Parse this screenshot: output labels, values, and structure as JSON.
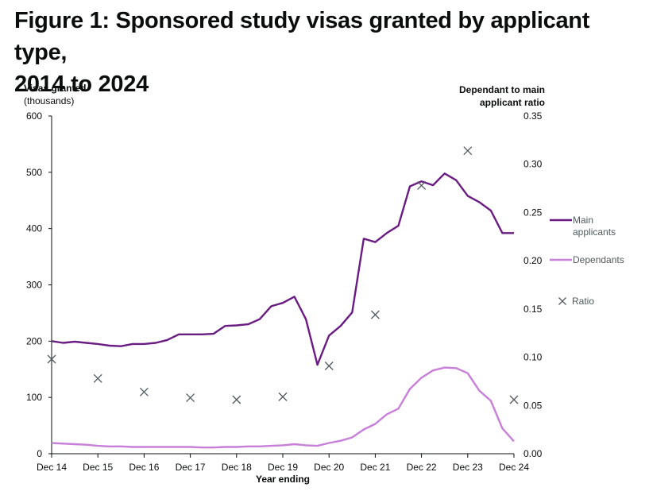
{
  "title": {
    "line1": "Figure 1: Sponsored study visas granted by applicant type,",
    "line2": "2014 to 2024"
  },
  "chart_data": {
    "type": "line",
    "title": "Figure 1: Sponsored study visas granted by applicant type, 2014 to 2024",
    "xlabel": "Year ending",
    "ylabel_left": [
      "Visas granted",
      "(thousands)"
    ],
    "ylabel_right": [
      "Dependant to main",
      "applicant ratio"
    ],
    "ylim_left": [
      0,
      600
    ],
    "ylim_right": [
      0,
      0.35
    ],
    "yticks_left": [
      "0",
      "100",
      "200",
      "300",
      "400",
      "500",
      "600"
    ],
    "yticks_right": [
      "0.00",
      "0.05",
      "0.10",
      "0.15",
      "0.20",
      "0.25",
      "0.30",
      "0.35"
    ],
    "xticks": [
      "Dec 14",
      "Dec 15",
      "Dec 16",
      "Dec 17",
      "Dec 18",
      "Dec 19",
      "Dec 20",
      "Dec 21",
      "Dec 22",
      "Dec 23",
      "Dec 24"
    ],
    "grid": false,
    "legend_position": "right",
    "series": [
      {
        "name": "Main applicants",
        "axis": "left",
        "color": "#6a1c83",
        "x": [
          0,
          0.25,
          0.5,
          0.75,
          1,
          1.25,
          1.5,
          1.75,
          2,
          2.25,
          2.5,
          2.75,
          3,
          3.25,
          3.5,
          3.75,
          4,
          4.25,
          4.5,
          4.75,
          5,
          5.25,
          5.5,
          5.75,
          6,
          6.25,
          6.5,
          6.75,
          7,
          7.25,
          7.5,
          7.75,
          8,
          8.25,
          8.5,
          8.75,
          9,
          9.25,
          9.5,
          9.75,
          10
        ],
        "values": [
          200,
          197,
          199,
          197,
          195,
          192,
          191,
          195,
          195,
          197,
          202,
          212,
          212,
          212,
          213,
          227,
          228,
          230,
          239,
          262,
          268,
          279,
          239,
          158,
          210,
          227,
          251,
          382,
          376,
          392,
          405,
          475,
          484,
          477,
          498,
          486,
          458,
          447,
          432,
          392,
          392
        ]
      },
      {
        "name": "Dependants",
        "axis": "left",
        "color": "#c87fd9",
        "x": [
          0,
          0.25,
          0.5,
          0.75,
          1,
          1.25,
          1.5,
          1.75,
          2,
          2.25,
          2.5,
          2.75,
          3,
          3.25,
          3.5,
          3.75,
          4,
          4.25,
          4.5,
          4.75,
          5,
          5.25,
          5.5,
          5.75,
          6,
          6.25,
          6.5,
          6.75,
          7,
          7.25,
          7.5,
          7.75,
          8,
          8.25,
          8.5,
          8.75,
          9,
          9.25,
          9.5,
          9.75,
          10
        ],
        "values": [
          19,
          18,
          17,
          16,
          14,
          13,
          13,
          12,
          12,
          12,
          12,
          12,
          12,
          11,
          11,
          12,
          12,
          13,
          13,
          14,
          15,
          17,
          15,
          14,
          19,
          23,
          29,
          43,
          53,
          70,
          80,
          115,
          135,
          148,
          153,
          152,
          143,
          112,
          94,
          45,
          22
        ]
      },
      {
        "name": "Ratio",
        "axis": "right",
        "type": "scatter",
        "marker": "x",
        "color": "#505a5f",
        "x": [
          0,
          1,
          2,
          3,
          4,
          5,
          6,
          7,
          8,
          9,
          10
        ],
        "values": [
          0.098,
          0.078,
          0.064,
          0.058,
          0.056,
          0.059,
          0.091,
          0.144,
          0.278,
          0.314,
          0.056
        ]
      }
    ]
  }
}
